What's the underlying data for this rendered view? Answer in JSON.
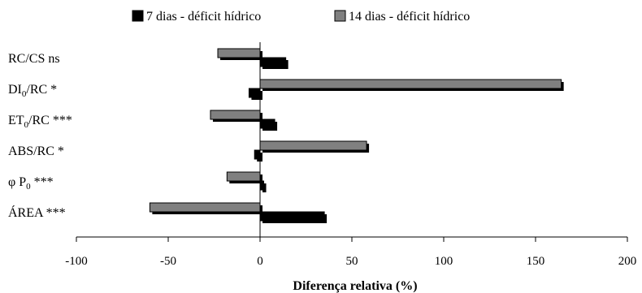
{
  "chart_data": {
    "type": "bar",
    "orientation": "horizontal",
    "title": "",
    "xlabel": "Diferença relativa (%)",
    "ylabel": "",
    "xlim": [
      -100,
      200
    ],
    "xticks": [
      -100,
      -50,
      0,
      50,
      100,
      150,
      200
    ],
    "grid": false,
    "legend_position": "top",
    "categories": [
      {
        "base": "RC/CS",
        "subscript": "",
        "suffix": "  ns"
      },
      {
        "base": "DI",
        "subscript": "0",
        "suffix": "/RC *"
      },
      {
        "base": "ET",
        "subscript": "0",
        "suffix": "/RC ***"
      },
      {
        "base": "ABS/RC *",
        "subscript": "",
        "suffix": ""
      },
      {
        "base": "φ P",
        "subscript": "0",
        "suffix": " ***"
      },
      {
        "base": "ÁREA ***",
        "subscript": "",
        "suffix": ""
      }
    ],
    "series": [
      {
        "name": "7 dias - déficit hídrico",
        "color": "#000000",
        "values": [
          14,
          -6,
          8,
          -3,
          2,
          35
        ]
      },
      {
        "name": "14 dias - déficit hídrico",
        "color": "#808080",
        "values": [
          -23,
          164,
          -27,
          58,
          -18,
          -60
        ]
      }
    ]
  }
}
